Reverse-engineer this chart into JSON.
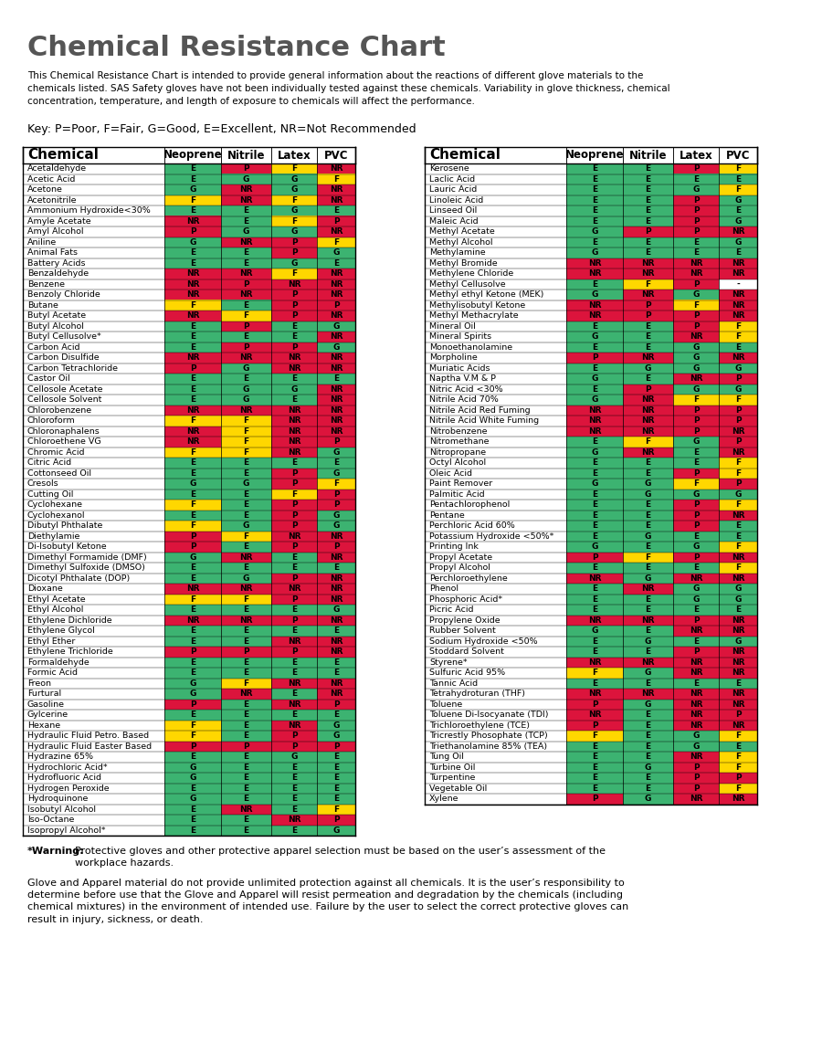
{
  "title": "Chemical Resistance Chart",
  "subtitle": "This Chemical Resistance Chart is intended to provide general information about the reactions of different glove materials to the\nchemicals listed. SAS Safety gloves have not been individually tested against these chemicals. Variability in glove thickness, chemical\nconcentration, temperature, and length of exposure to chemicals will affect the performance.",
  "key_text": "Key: P=Poor, F=Fair, G=Good, E=Excellent, NR=Not Recommended",
  "footer1": "*Warning: Protective gloves and other protective apparel selection must be based on the user’s assessment of the\nworkplace hazards.",
  "footer2": "Glove and Apparel material do not provide unlimited protection against all chemicals. It is the user’s responsibility to\ndetermine before use that the Glove and Apparel will resist permeation and degradation by the chemicals (including\nchemical mixtures) in the environment of intended use. Failure by the user to select the correct protective gloves can\nresult in injury, sickness, or death.",
  "col_headers": [
    "Chemical",
    "Neoprene",
    "Nitrile",
    "Latex",
    "PVC"
  ],
  "color_map": {
    "E": "#4CAF50",
    "G": "#4CAF50",
    "F": "#FFEB3B",
    "P": "#F44336",
    "NR": "#F44336",
    "-": "#FFFFFF"
  },
  "left_chemicals": [
    [
      "Acetaldehyde",
      "E",
      "P",
      "F",
      "NR"
    ],
    [
      "Acetic Acid",
      "E",
      "G",
      "G",
      "F"
    ],
    [
      "Acetone",
      "G",
      "NR",
      "G",
      "NR"
    ],
    [
      "Acetonitrile",
      "F",
      "NR",
      "F",
      "NR"
    ],
    [
      "Ammonium Hydroxide<30%",
      "E",
      "E",
      "G",
      "E"
    ],
    [
      "Amyle Acetate",
      "NR",
      "E",
      "F",
      "P"
    ],
    [
      "Amyl Alcohol",
      "P",
      "G",
      "G",
      "NR"
    ],
    [
      "Aniline",
      "G",
      "NR",
      "P",
      "F"
    ],
    [
      "Animal Fats",
      "E",
      "E",
      "P",
      "G"
    ],
    [
      "Battery Acids",
      "E",
      "E",
      "G",
      "E"
    ],
    [
      "Benzaldehyde",
      "NR",
      "NR",
      "F",
      "NR"
    ],
    [
      "Benzene",
      "NR",
      "P",
      "NR",
      "NR"
    ],
    [
      "Benzoly Chloride",
      "NR",
      "NR",
      "P",
      "NR"
    ],
    [
      "Butane",
      "F",
      "E",
      "P",
      "P"
    ],
    [
      "Butyl Acetate",
      "NR",
      "F",
      "P",
      "NR"
    ],
    [
      "Butyl Alcohol",
      "E",
      "P",
      "E",
      "G"
    ],
    [
      "Butyl Cellusolve*",
      "E",
      "E",
      "E",
      "NR"
    ],
    [
      "Carbon Acid",
      "E",
      "P",
      "P",
      "G"
    ],
    [
      "Carbon Disulfide",
      "NR",
      "NR",
      "NR",
      "NR"
    ],
    [
      "Carbon Tetrachloride",
      "P",
      "G",
      "NR",
      "NR"
    ],
    [
      "Castor Oil",
      "E",
      "E",
      "E",
      "E"
    ],
    [
      "Cellosole Acetate",
      "E",
      "G",
      "G",
      "NR"
    ],
    [
      "Cellosole Solvent",
      "E",
      "G",
      "E",
      "NR"
    ],
    [
      "Chlorobenzene",
      "NR",
      "NR",
      "NR",
      "NR"
    ],
    [
      "Chloroform",
      "F",
      "F",
      "NR",
      "NR"
    ],
    [
      "Chloronaphalens",
      "NR",
      "F",
      "NR",
      "NR"
    ],
    [
      "Chloroethene VG",
      "NR",
      "F",
      "NR",
      "P"
    ],
    [
      "Chromic Acid",
      "F",
      "F",
      "NR",
      "G"
    ],
    [
      "Citric Acid",
      "E",
      "E",
      "E",
      "E"
    ],
    [
      "Cottonseed Oil",
      "E",
      "E",
      "P",
      "G"
    ],
    [
      "Cresols",
      "G",
      "G",
      "P",
      "F"
    ],
    [
      "Cutting Oil",
      "E",
      "E",
      "F",
      "P"
    ],
    [
      "Cyclohexane",
      "F",
      "E",
      "P",
      "P"
    ],
    [
      "Cyclohexanol",
      "E",
      "E",
      "P",
      "G"
    ],
    [
      "Dibutyl Phthalate",
      "F",
      "G",
      "P",
      "G"
    ],
    [
      "Diethylamie",
      "P",
      "F",
      "NR",
      "NR"
    ],
    [
      "Di-Isobutyl Ketone",
      "P",
      "E",
      "P",
      "P"
    ],
    [
      "Dimethyl Formamide (DMF)",
      "G",
      "NR",
      "E",
      "NR"
    ],
    [
      "Dimethyl Sulfoxide (DMSO)",
      "E",
      "E",
      "E",
      "E"
    ],
    [
      "Dicotyl Phthalate (DOP)",
      "E",
      "G",
      "P",
      "NR"
    ],
    [
      "Dioxane",
      "NR",
      "NR",
      "NR",
      "NR"
    ],
    [
      "Ethyl Acetate",
      "F",
      "F",
      "P",
      "NR"
    ],
    [
      "Ethyl Alcohol",
      "E",
      "E",
      "E",
      "G"
    ],
    [
      "Ethylene Dichloride",
      "NR",
      "NR",
      "P",
      "NR"
    ],
    [
      "Ethylene Glycol",
      "E",
      "E",
      "E",
      "E"
    ],
    [
      "Ethyl Ether",
      "E",
      "E",
      "NR",
      "NR"
    ],
    [
      "Ethylene Trichloride",
      "P",
      "P",
      "P",
      "NR"
    ],
    [
      "Formaldehyde",
      "E",
      "E",
      "E",
      "E"
    ],
    [
      "Formic Acid",
      "E",
      "E",
      "E",
      "E"
    ],
    [
      "Freon",
      "G",
      "F",
      "NR",
      "NR"
    ],
    [
      "Furtural",
      "G",
      "NR",
      "E",
      "NR"
    ],
    [
      "Gasoline",
      "P",
      "E",
      "NR",
      "P"
    ],
    [
      "Gylcerine",
      "E",
      "E",
      "E",
      "E"
    ],
    [
      "Hexane",
      "F",
      "E",
      "NR",
      "G"
    ],
    [
      "Hydraulic Fluid Petro. Based",
      "F",
      "E",
      "P",
      "G"
    ],
    [
      "Hydraulic Fluid Easter Based",
      "P",
      "P",
      "P",
      "P"
    ],
    [
      "Hydrazine 65%",
      "E",
      "E",
      "G",
      "E"
    ],
    [
      "Hydrochloric Acid*",
      "G",
      "E",
      "E",
      "E"
    ],
    [
      "Hydrofluoric Acid",
      "G",
      "E",
      "E",
      "E"
    ],
    [
      "Hydrogen Peroxide",
      "E",
      "E",
      "E",
      "E"
    ],
    [
      "Hydroquinone",
      "G",
      "E",
      "E",
      "E"
    ],
    [
      "Isobutyl Alcohol",
      "E",
      "NR",
      "E",
      "F"
    ],
    [
      "Iso-Octane",
      "E",
      "E",
      "NR",
      "P"
    ],
    [
      "Isopropyl Alcohol*",
      "E",
      "E",
      "E",
      "G"
    ]
  ],
  "right_chemicals": [
    [
      "Kerosene",
      "E",
      "E",
      "P",
      "F"
    ],
    [
      "Laclic Acid",
      "E",
      "E",
      "E",
      "E"
    ],
    [
      "Lauric Acid",
      "E",
      "E",
      "G",
      "F"
    ],
    [
      "Linoleic Acid",
      "E",
      "E",
      "P",
      "G"
    ],
    [
      "Linseed Oil",
      "E",
      "E",
      "P",
      "E"
    ],
    [
      "Maleic Acid",
      "E",
      "E",
      "P",
      "G"
    ],
    [
      "Methyl Acetate",
      "G",
      "P",
      "P",
      "NR"
    ],
    [
      "Methyl Alcohol",
      "E",
      "E",
      "E",
      "G"
    ],
    [
      "Methylamine",
      "G",
      "E",
      "E",
      "E"
    ],
    [
      "Methyl Bromide",
      "NR",
      "NR",
      "NR",
      "NR"
    ],
    [
      "Methylene Chloride",
      "NR",
      "NR",
      "NR",
      "NR"
    ],
    [
      "Methyl Cellusolve",
      "E",
      "F",
      "P",
      "-"
    ],
    [
      "Methyl ethyl Ketone (MEK)",
      "G",
      "NR",
      "G",
      "NR"
    ],
    [
      "Methylisobutyl Ketone",
      "NR",
      "P",
      "F",
      "NR"
    ],
    [
      "Methyl Methacrylate",
      "NR",
      "P",
      "P",
      "NR"
    ],
    [
      "Mineral Oil",
      "E",
      "E",
      "P",
      "F"
    ],
    [
      "Mineral Spirits",
      "G",
      "E",
      "NR",
      "F"
    ],
    [
      "Monoethanolamine",
      "E",
      "E",
      "G",
      "E"
    ],
    [
      "Morpholine",
      "P",
      "NR",
      "G",
      "NR"
    ],
    [
      "Muriatic Acids",
      "E",
      "G",
      "G",
      "G"
    ],
    [
      "Naptha V.M & P",
      "G",
      "E",
      "NR",
      "P"
    ],
    [
      "Nitric Acid <30%",
      "E",
      "P",
      "G",
      "G"
    ],
    [
      "Nitrile Acid 70%",
      "G",
      "NR",
      "F",
      "F"
    ],
    [
      "Nitrile Acid Red Fuming",
      "NR",
      "NR",
      "P",
      "P"
    ],
    [
      "Nitrile Acid White Fuming",
      "NR",
      "NR",
      "P",
      "P"
    ],
    [
      "Nitrobenzene",
      "NR",
      "NR",
      "P",
      "NR"
    ],
    [
      "Nitromethane",
      "E",
      "F",
      "G",
      "P"
    ],
    [
      "Nitropropane",
      "G",
      "NR",
      "E",
      "NR"
    ],
    [
      "Octyl Alcohol",
      "E",
      "E",
      "E",
      "F"
    ],
    [
      "Oleic Acid",
      "E",
      "E",
      "P",
      "F"
    ],
    [
      "Paint Remover",
      "G",
      "G",
      "F",
      "P"
    ],
    [
      "Palmitic Acid",
      "E",
      "G",
      "G",
      "G"
    ],
    [
      "Pentachlorophenol",
      "E",
      "E",
      "P",
      "F"
    ],
    [
      "Pentane",
      "E",
      "E",
      "P",
      "NR"
    ],
    [
      "Perchloric Acid 60%",
      "E",
      "E",
      "P",
      "E"
    ],
    [
      "Potassium Hydroxide <50%*",
      "E",
      "G",
      "E",
      "E"
    ],
    [
      "Printing Ink",
      "G",
      "E",
      "G",
      "F"
    ],
    [
      "Propyl Acetate",
      "P",
      "F",
      "P",
      "NR"
    ],
    [
      "Propyl Alcohol",
      "E",
      "E",
      "E",
      "F"
    ],
    [
      "Perchloroethylene",
      "NR",
      "G",
      "NR",
      "NR"
    ],
    [
      "Phenol",
      "E",
      "NR",
      "G",
      "G"
    ],
    [
      "Phosphoric Acid*",
      "E",
      "E",
      "G",
      "G"
    ],
    [
      "Picric Acid",
      "E",
      "E",
      "E",
      "E"
    ],
    [
      "Propylene Oxide",
      "NR",
      "NR",
      "P",
      "NR"
    ],
    [
      "Rubber Solvent",
      "G",
      "E",
      "NR",
      "NR"
    ],
    [
      "Sodium Hydroxide <50%",
      "E",
      "G",
      "E",
      "G"
    ],
    [
      "Stoddard Solvent",
      "E",
      "E",
      "P",
      "NR"
    ],
    [
      "Styrene*",
      "NR",
      "NR",
      "NR",
      "NR"
    ],
    [
      "Sulfuric Acid 95%",
      "F",
      "G",
      "NR",
      "NR"
    ],
    [
      "Tannic Acid",
      "E",
      "E",
      "E",
      "E"
    ],
    [
      "Tetrahydroturan (THF)",
      "NR",
      "NR",
      "NR",
      "NR"
    ],
    [
      "Toluene",
      "P",
      "G",
      "NR",
      "NR"
    ],
    [
      "Toluene Di-Isocyanate (TDI)",
      "NR",
      "E",
      "NR",
      "P"
    ],
    [
      "Trichloroethylene (TCE)",
      "P",
      "E",
      "NR",
      "NR"
    ],
    [
      "Tricrestly Phosophate (TCP)",
      "F",
      "E",
      "G",
      "F"
    ],
    [
      "Triethanolamine 85% (TEA)",
      "E",
      "E",
      "G",
      "E"
    ],
    [
      "Tung Oil",
      "E",
      "E",
      "NR",
      "F"
    ],
    [
      "Turbine Oil",
      "E",
      "G",
      "P",
      "F"
    ],
    [
      "Turpentine",
      "E",
      "E",
      "P",
      "P"
    ],
    [
      "Vegetable Oil",
      "E",
      "E",
      "P",
      "F"
    ],
    [
      "Xylene",
      "P",
      "G",
      "NR",
      "NR"
    ]
  ]
}
